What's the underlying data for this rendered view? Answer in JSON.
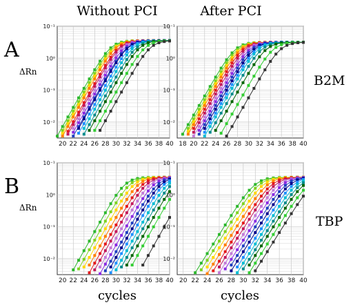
{
  "figure": {
    "col_titles": [
      "Without PCI",
      "After PCI"
    ],
    "row_letters": [
      "A",
      "B"
    ],
    "gene_labels": [
      "B2M",
      "TBP"
    ],
    "ylabel": "ΔRn",
    "xlabel": "cycles",
    "series_colors": [
      "#2db82d",
      "#7fd321",
      "#ffd700",
      "#ff7f00",
      "#e31a1c",
      "#c2185b",
      "#c37bd8",
      "#8a2be2",
      "#1f3fbf",
      "#00008b",
      "#1e90ff",
      "#00bcd4",
      "#008b8b",
      "#006400",
      "#32cd32",
      "#333333"
    ]
  },
  "chart_data": [
    {
      "type": "line",
      "title": "Without PCI",
      "row": "B2M",
      "xticks": [
        20,
        22,
        24,
        26,
        28,
        30,
        32,
        34,
        36,
        38,
        40
      ],
      "yticks": [
        "10⁻¹",
        "10⁰",
        "10⁻¹",
        "10⁻²"
      ],
      "xlim": [
        19,
        40
      ],
      "ylim_log10": [
        -2.5,
        1
      ],
      "yscale": "log",
      "grid": true,
      "series_ct": [
        19.8,
        20.2,
        20.5,
        20.8,
        21.3,
        21.6,
        22.0,
        22.4,
        22.8,
        23.0,
        23.5,
        24.0,
        24.6,
        25.2,
        26.2,
        27.2
      ],
      "plateau": 0.55
    },
    {
      "type": "line",
      "title": "After PCI",
      "row": "B2M",
      "xticks": [
        18,
        20,
        22,
        24,
        26,
        28,
        30,
        32,
        34,
        36,
        38,
        40
      ],
      "yticks": [
        "10⁻¹",
        "10⁰",
        "10⁻¹",
        "10⁻²"
      ],
      "xlim": [
        17,
        40
      ],
      "ylim_log10": [
        -2.5,
        1
      ],
      "yscale": "log",
      "grid": true,
      "series_ct": [
        18.6,
        19.0,
        19.3,
        19.6,
        20.0,
        20.4,
        20.8,
        21.2,
        21.6,
        22.0,
        22.4,
        22.8,
        23.4,
        24.2,
        25.5,
        26.8
      ],
      "plateau": 0.5
    },
    {
      "type": "line",
      "title": "",
      "row": "TBP",
      "xticks": [
        20,
        22,
        24,
        26,
        28,
        30,
        32,
        34,
        36,
        38,
        40
      ],
      "yticks": [
        "10⁻¹",
        "10⁰",
        "10⁻¹",
        "10⁻²"
      ],
      "xlim": [
        19,
        40
      ],
      "ylim_log10": [
        -2.5,
        1
      ],
      "yscale": "log",
      "grid": true,
      "series_ct": [
        22.5,
        23.4,
        24.2,
        25.0,
        25.8,
        26.5,
        27.2,
        27.9,
        28.6,
        29.2,
        29.8,
        30.5,
        31.2,
        32.0,
        33.0,
        35.0
      ],
      "plateau": 0.55
    },
    {
      "type": "line",
      "title": "",
      "row": "TBP",
      "xticks": [
        20,
        22,
        24,
        26,
        28,
        30,
        32,
        34,
        36,
        38,
        40
      ],
      "yticks": [
        "10⁻¹",
        "10⁰",
        "10⁻¹",
        "10⁻²"
      ],
      "xlim": [
        19,
        40
      ],
      "ylim_log10": [
        -2.5,
        1
      ],
      "yscale": "log",
      "grid": true,
      "series_ct": [
        22.8,
        23.5,
        24.2,
        24.9,
        25.6,
        26.2,
        26.8,
        27.4,
        28.0,
        28.6,
        29.2,
        29.8,
        30.4,
        31.0,
        31.8,
        32.6
      ],
      "plateau": 0.55
    }
  ]
}
